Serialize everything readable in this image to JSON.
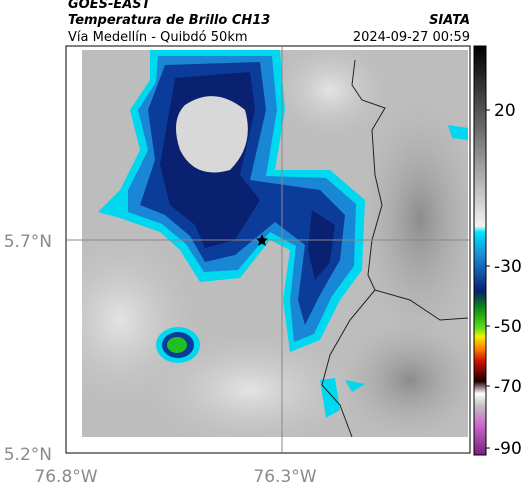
{
  "header": {
    "title": "GOES-EAST",
    "subtitle": "Temperatura de Brillo CH13",
    "location": "Vía Medellín - Quibdó 50km",
    "source": "SIATA",
    "datetime": "2024-09-27 00:59"
  },
  "axes": {
    "yticks": [
      "5.7°N",
      "5.2°N"
    ],
    "xticks": [
      "76.8°W",
      "76.3°W"
    ]
  },
  "colorbar": {
    "ticks": [
      "20",
      "-30",
      "-50",
      "-70",
      "-90"
    ]
  }
}
